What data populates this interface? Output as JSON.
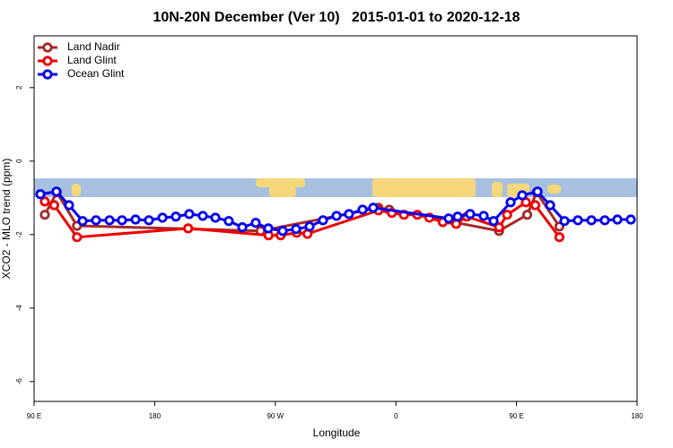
{
  "chart_data": {
    "type": "line",
    "title": "10N-20N December (Ver 10)   2015-01-01 to 2020-12-18",
    "x_label": "Longitude",
    "y_label": "XCO2 - MLO trend (ppm)",
    "xlim": [
      90,
      540
    ],
    "ylim": [
      -6.54,
      3.41
    ],
    "xticks": [
      {
        "value": 90,
        "label": "90 E"
      },
      {
        "value": 180,
        "label": "180"
      },
      {
        "value": 270,
        "label": "90 W"
      },
      {
        "value": 360,
        "label": "0"
      },
      {
        "value": 450,
        "label": "90 E"
      },
      {
        "value": 540,
        "label": "180"
      }
    ],
    "yticks": [
      -6,
      -4,
      -2,
      0,
      2
    ],
    "legend": "top-left",
    "series": [
      {
        "name": "Land Nadir",
        "color": "#a52a2a",
        "x": [
          98,
          107,
          122,
          259,
          347,
          355,
          437,
          458,
          465,
          482
        ],
        "values": [
          -1.46,
          -0.85,
          -1.76,
          -1.9,
          -1.27,
          -1.32,
          -1.9,
          -1.46,
          -0.85,
          -1.78
        ]
      },
      {
        "name": "Land Glint",
        "color": "#ee0000",
        "x": [
          98,
          105,
          122,
          205,
          265,
          274,
          286,
          294,
          347,
          357,
          366,
          376,
          385,
          395,
          405,
          413,
          437,
          443,
          457,
          464,
          482
        ],
        "values": [
          -1.1,
          -1.2,
          -2.07,
          -1.83,
          -2.02,
          -2.02,
          -1.95,
          -1.98,
          -1.34,
          -1.41,
          -1.46,
          -1.46,
          -1.54,
          -1.66,
          -1.71,
          -1.51,
          -1.8,
          -1.46,
          -1.12,
          -1.2,
          -2.07
        ]
      },
      {
        "name": "Ocean Glint",
        "color": "#0000ee",
        "x": [
          94.7,
          106.7,
          116.1,
          126.2,
          136.2,
          146.3,
          155.6,
          165.7,
          175.7,
          185.8,
          195.8,
          205.8,
          215.9,
          225.3,
          235.3,
          245.4,
          255.4,
          264.8,
          275.5,
          285.5,
          295.6,
          305.6,
          315.7,
          325,
          335.1,
          343.1,
          399.4,
          406.1,
          415.4,
          425.5,
          432.9,
          445.6,
          454.3,
          465.7,
          475.1,
          485.8,
          495.8,
          505.9,
          515.9,
          525.3,
          535.3
        ],
        "values": [
          -0.9,
          -0.83,
          -1.2,
          -1.63,
          -1.61,
          -1.61,
          -1.61,
          -1.59,
          -1.61,
          -1.54,
          -1.51,
          -1.44,
          -1.49,
          -1.54,
          -1.63,
          -1.8,
          -1.68,
          -1.83,
          -1.9,
          -1.85,
          -1.78,
          -1.61,
          -1.49,
          -1.44,
          -1.32,
          -1.27,
          -1.56,
          -1.51,
          -1.44,
          -1.49,
          -1.63,
          -1.12,
          -0.93,
          -0.83,
          -1.2,
          -1.63,
          -1.61,
          -1.61,
          -1.61,
          -1.59,
          -1.59
        ]
      }
    ]
  }
}
